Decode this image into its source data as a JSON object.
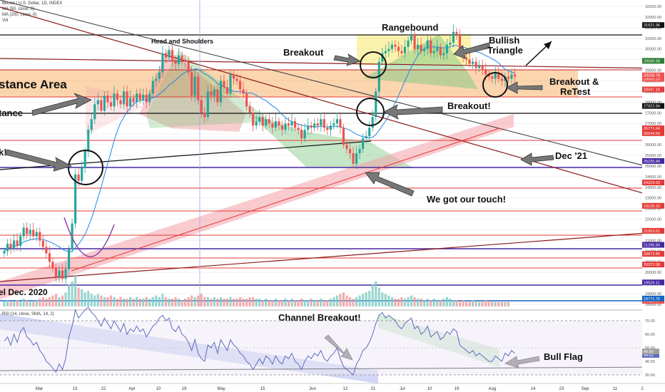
{
  "header": {
    "symbol_line": "Bitcoin / U.S. Dollar, 1D, INDEX",
    "ma50_label": "MA (50, close, 0)",
    "ma200_label": "MA (200, close, 0)",
    "vol_label": "Vol",
    "rsi_label": "RSI (14, close, SMA, 14, 2)"
  },
  "colors": {
    "up": "#26a69a",
    "down": "#ef5350",
    "resistance": "#f7a24b",
    "rangebound": "#f7e96a",
    "channel": "#f4a0a8",
    "rsi_channel": "#7a8ce0",
    "purple": "#5b2ca0",
    "dark_red": "#8b1a1a"
  },
  "annotations": {
    "rangebound": "Rangebound",
    "head_shoulders": "Head and Shoulders",
    "breakout_top": "Breakout",
    "bullish_triangle_1": "Bullish",
    "bullish_triangle_2": "Triangle",
    "breakout_retest_1": "Breakout &",
    "breakout_retest_2": "ReTest",
    "resistance_area": "stance Area",
    "resistance_small": "tance",
    "left_k": "k!",
    "breakout_mid": "Breakout!",
    "dec21": "Dec '21",
    "touch": "We got our touch!",
    "level_dec2020": "el Dec. 2020",
    "channel_breakout": "Channel Breakout!",
    "bull_flag": "Bull Flag"
  },
  "price_axis": {
    "ticks": [
      "32500.00",
      "32000.00",
      "31500.00",
      "31000.00",
      "30500.00",
      "30000.00",
      "29500.00",
      "29000.00",
      "28500.00",
      "28000.00",
      "27500.00",
      "27000.00",
      "26500.00",
      "26000.00",
      "25500.00",
      "25000.00",
      "24500.00",
      "24000.00",
      "23500.00",
      "23000.00",
      "22500.00",
      "22000.00",
      "21500.00",
      "21000.00",
      "20500.00",
      "20000.00",
      "19500.00",
      "19000.00",
      "18500.00"
    ],
    "tags": [
      {
        "label": "31621.96",
        "value": 31621.96,
        "color": "#111111"
      },
      {
        "label": "29940.99",
        "value": 29940.99,
        "color": "#2e7d32"
      },
      {
        "label": "29093.20",
        "value": 29093.2,
        "color": "#ef5350"
      },
      {
        "label": "29258.76",
        "value": 29258.76,
        "color": "#ef5350"
      },
      {
        "label": "28597.18",
        "value": 28597.18,
        "color": "#e53935"
      },
      {
        "label": "27822.84",
        "value": 27822.84,
        "color": "#111111"
      },
      {
        "label": "26771.64",
        "value": 26771.64,
        "color": "#e53935"
      },
      {
        "label": "26544.50",
        "value": 26544.5,
        "color": "#e53935"
      },
      {
        "label": "25235.84",
        "value": 25235.84,
        "color": "#4527a0"
      },
      {
        "label": "24224.93",
        "value": 24224.93,
        "color": "#e53935"
      },
      {
        "label": "23129.33",
        "value": 23129.33,
        "color": "#e53935"
      },
      {
        "label": "21953.61",
        "value": 21953.61,
        "color": "#e53935"
      },
      {
        "label": "21296.84",
        "value": 21296.84,
        "color": "#4527a0"
      },
      {
        "label": "20873.85",
        "value": 20873.85,
        "color": "#e53935"
      },
      {
        "label": "20372.08",
        "value": 20372.08,
        "color": "#e53935"
      },
      {
        "label": "19529.11",
        "value": 19529.11,
        "color": "#4527a0"
      },
      {
        "label": "14.527K",
        "value": 18660,
        "color": "#ef5350"
      },
      {
        "label": "18771.75",
        "value": 18771.75,
        "color": "#1565c0"
      }
    ]
  },
  "rsi_axis": {
    "ticks": [
      "70.00",
      "60.00",
      "50.00",
      "40.00",
      "30.00"
    ],
    "tags": [
      {
        "label": "44.81",
        "value": 44.81,
        "color": "#5c6bc0"
      },
      {
        "label": "45.80",
        "value": 47.3,
        "color": "#9e9e9e"
      }
    ]
  },
  "time_axis": [
    "Mar",
    "13",
    "22",
    "Apr",
    "10",
    "19",
    "May",
    "15",
    "Jun",
    "12",
    "21",
    "Jul",
    "10",
    "19",
    "Aug",
    "14",
    "23",
    "Sep",
    "11",
    "2"
  ],
  "chart_data": {
    "type": "candlestick",
    "title": "Bitcoin / U.S. Dollar, 1D, INDEX",
    "series_name": "BTCUSD daily",
    "y_range": [
      18400,
      32800
    ],
    "closes": [
      21000,
      21350,
      21150,
      21500,
      21250,
      21700,
      22100,
      21800,
      22000,
      21700,
      21900,
      21500,
      21200,
      20900,
      20500,
      20200,
      19800,
      20100,
      19700,
      20150,
      21100,
      22300,
      24600,
      24300,
      24900,
      25700,
      26700,
      27200,
      27900,
      28100,
      27600,
      28300,
      28000,
      27800,
      28400,
      28100,
      27900,
      28500,
      27800,
      28200,
      28000,
      28400,
      28100,
      28350,
      28000,
      28400,
      29000,
      29100,
      29400,
      30300,
      30100,
      30450,
      29900,
      29800,
      30200,
      30000,
      29900,
      29400,
      28300,
      29200,
      28100,
      27500,
      27300,
      28500,
      28300,
      28600,
      28000,
      29000,
      28700,
      28400,
      29300,
      29100,
      29000,
      28600,
      28400,
      27800,
      27500,
      26900,
      27100,
      27300,
      26900,
      27200,
      27000,
      26800,
      27100,
      26900,
      26700,
      27000,
      26900,
      27100,
      26800,
      26700,
      26300,
      26700,
      26900,
      26800,
      27000,
      26900,
      27200,
      26800,
      26700,
      26900,
      27000,
      27200,
      26800,
      26000,
      25800,
      25600,
      25100,
      25600,
      25800,
      26300,
      26400,
      26800,
      27300,
      28500,
      29900,
      30300,
      30400,
      30500,
      30700,
      30600,
      30400,
      30300,
      30600,
      30900,
      31200,
      30500,
      30700,
      30400,
      30500,
      30900,
      30300,
      30400,
      30600,
      30200,
      30300,
      30700,
      30800,
      31300,
      31200,
      30400,
      30100,
      30000,
      29800,
      29900,
      29600,
      29700,
      29500,
      29300,
      29200,
      29100,
      29400,
      29100,
      29000,
      29200,
      29100,
      29300,
      29200
    ],
    "volume": [
      3,
      4,
      3,
      3,
      4,
      3,
      5,
      4,
      3,
      3,
      4,
      5,
      6,
      5,
      6,
      7,
      8,
      6,
      7,
      9,
      14,
      16,
      20,
      12,
      11,
      9,
      10,
      8,
      7,
      8,
      7,
      6,
      6,
      7,
      6,
      5,
      6,
      5,
      5,
      6,
      5,
      6,
      5,
      5,
      6,
      5,
      6,
      7,
      6,
      8,
      6,
      5,
      5,
      6,
      5,
      4,
      5,
      6,
      7,
      6,
      7,
      8,
      6,
      6,
      5,
      6,
      5,
      6,
      5,
      5,
      6,
      5,
      5,
      6,
      5,
      5,
      6,
      6,
      5,
      5,
      4,
      5,
      4,
      4,
      5,
      4,
      4,
      5,
      4,
      5,
      4,
      4,
      5,
      4,
      4,
      5,
      4,
      4,
      5,
      4,
      4,
      5,
      6,
      7,
      8,
      9,
      7,
      6,
      5,
      6,
      7,
      8,
      9,
      10,
      14,
      16,
      12,
      9,
      8,
      7,
      6,
      5,
      5,
      6,
      5,
      6,
      7,
      6,
      5,
      5,
      4,
      5,
      4,
      5,
      4,
      4,
      5,
      6,
      5,
      4,
      4,
      3,
      4,
      3,
      3,
      4,
      3,
      3,
      3,
      4,
      3,
      3,
      3,
      3,
      3,
      3,
      3
    ],
    "rsi": [
      55,
      58,
      52,
      60,
      54,
      62,
      65,
      58,
      56,
      52,
      54,
      48,
      45,
      40,
      38,
      35,
      32,
      38,
      34,
      42,
      58,
      66,
      78,
      72,
      75,
      78,
      80,
      76,
      74,
      70,
      66,
      72,
      68,
      64,
      70,
      66,
      62,
      68,
      60,
      64,
      62,
      66,
      62,
      64,
      58,
      62,
      66,
      68,
      72,
      74,
      70,
      72,
      64,
      62,
      66,
      60,
      58,
      54,
      48,
      56,
      46,
      42,
      40,
      52,
      50,
      54,
      46,
      56,
      52,
      48,
      56,
      52,
      50,
      46,
      44,
      40,
      38,
      34,
      38,
      42,
      38,
      44,
      42,
      38,
      44,
      40,
      38,
      44,
      42,
      46,
      40,
      38,
      34,
      40,
      44,
      42,
      46,
      44,
      48,
      42,
      40,
      44,
      46,
      50,
      42,
      36,
      34,
      32,
      30,
      38,
      42,
      48,
      50,
      54,
      60,
      68,
      74,
      76,
      72,
      74,
      72,
      70,
      66,
      64,
      68,
      70,
      72,
      64,
      66,
      60,
      62,
      66,
      58,
      60,
      62,
      56,
      58,
      62,
      60,
      64,
      62,
      52,
      50,
      48,
      46,
      48,
      44,
      46,
      44,
      42,
      40,
      40,
      44,
      42,
      40,
      46,
      44,
      48,
      46
    ]
  }
}
